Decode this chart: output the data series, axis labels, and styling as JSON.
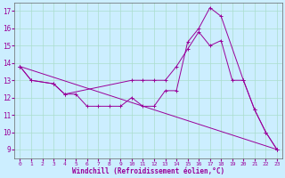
{
  "xlabel": "Windchill (Refroidissement éolien,°C)",
  "bg_color": "#cceeff",
  "grid_color": "#aaddcc",
  "line_color": "#990099",
  "xlim": [
    -0.5,
    23.5
  ],
  "ylim": [
    8.5,
    17.5
  ],
  "xticks": [
    0,
    1,
    2,
    3,
    4,
    5,
    6,
    7,
    8,
    9,
    10,
    11,
    12,
    13,
    14,
    15,
    16,
    17,
    18,
    19,
    20,
    21,
    22,
    23
  ],
  "yticks": [
    9,
    10,
    11,
    12,
    13,
    14,
    15,
    16,
    17
  ],
  "line1_x": [
    0,
    1,
    3,
    4,
    5,
    6,
    7,
    8,
    9,
    10,
    11,
    12,
    13,
    14,
    15,
    16,
    17,
    18,
    20,
    21,
    22,
    23
  ],
  "line1_y": [
    13.8,
    13.0,
    12.8,
    12.2,
    12.2,
    11.5,
    11.5,
    11.5,
    11.5,
    12.0,
    11.5,
    11.5,
    12.4,
    12.4,
    15.2,
    16.0,
    17.2,
    16.7,
    13.0,
    11.3,
    10.0,
    9.0
  ],
  "line2_x": [
    0,
    1,
    3,
    4,
    10,
    11,
    12,
    13,
    14,
    15,
    16,
    17,
    18,
    19,
    20,
    21,
    22,
    23
  ],
  "line2_y": [
    13.8,
    13.0,
    12.8,
    12.2,
    13.0,
    13.0,
    13.0,
    13.0,
    13.8,
    14.8,
    15.8,
    15.0,
    15.3,
    13.0,
    13.0,
    11.3,
    10.0,
    9.0
  ],
  "line3_x": [
    0,
    23
  ],
  "line3_y": [
    13.8,
    9.0
  ]
}
